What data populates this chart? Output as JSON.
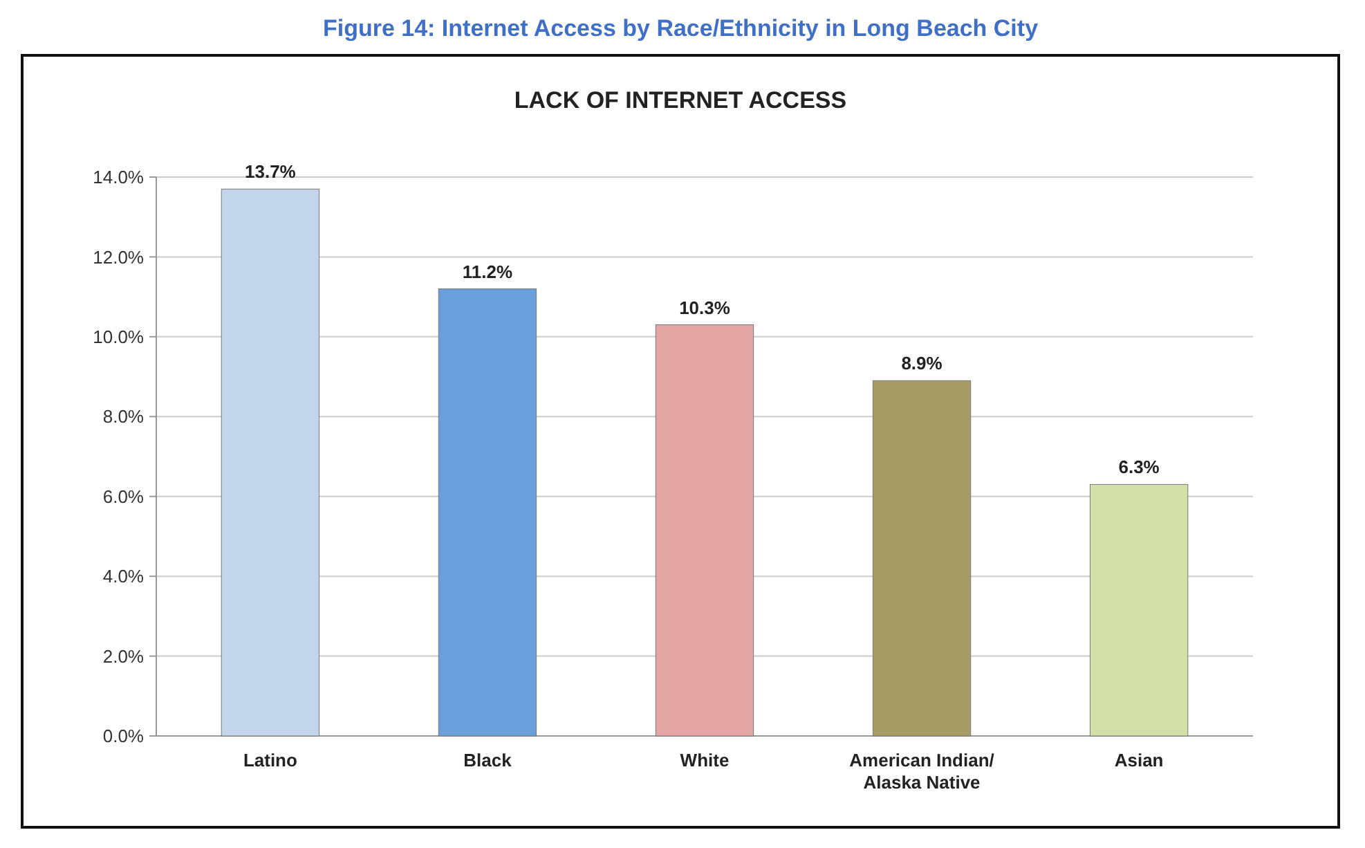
{
  "chart_data": {
    "type": "bar",
    "title": "Figure 14: Internet Access by Race/Ethnicity in Long Beach City",
    "subtitle": "LACK OF INTERNET ACCESS",
    "categories": [
      "Latino",
      "Black",
      "White",
      "American Indian/\nAlaska Native",
      "Asian"
    ],
    "values": [
      13.7,
      11.2,
      10.3,
      8.9,
      6.3
    ],
    "colors": [
      "#c3d5ea",
      "#6a9fdc",
      "#e3a6a4",
      "#a69b63",
      "#d3e0a8"
    ],
    "value_labels": [
      "13.7%",
      "11.2%",
      "10.3%",
      "8.9%",
      "6.3%"
    ],
    "ylim": [
      0,
      14
    ],
    "yticks": [
      {
        "value": 0,
        "label": "0.0%"
      },
      {
        "value": 2,
        "label": "2.0%"
      },
      {
        "value": 4,
        "label": "4.0%"
      },
      {
        "value": 6,
        "label": "6.0%"
      },
      {
        "value": 8,
        "label": "8.0%"
      },
      {
        "value": 10,
        "label": "10.0%"
      },
      {
        "value": 12,
        "label": "12.0%"
      },
      {
        "value": 14,
        "label": "14.0%"
      }
    ],
    "grid": true
  }
}
